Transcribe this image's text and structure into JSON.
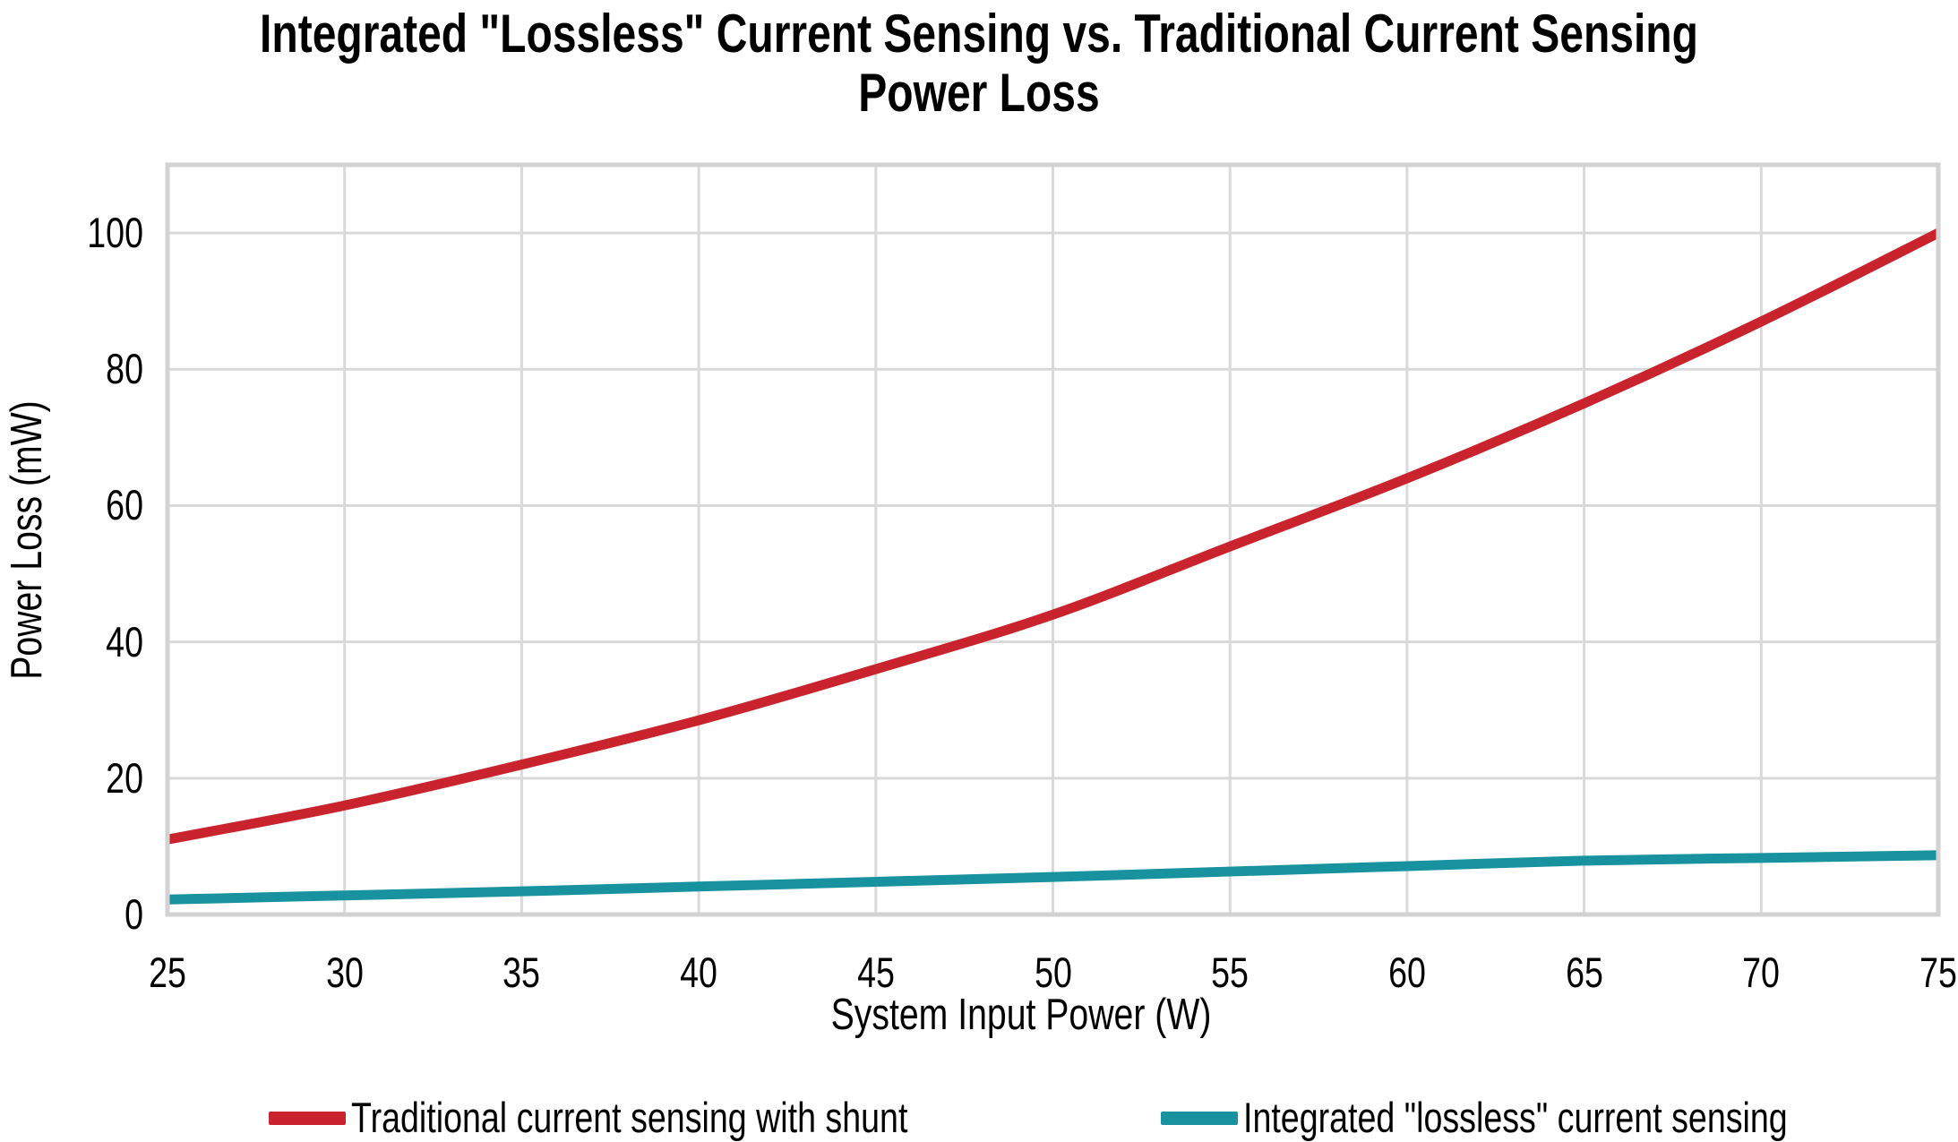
{
  "title": {
    "line1": "Integrated \"Lossless\" Current Sensing vs. Traditional Current Sensing",
    "line2": "Power Loss"
  },
  "axes": {
    "x_label": "System Input Power (W)",
    "y_label": "Power Loss (mW)",
    "x_ticks": [
      "25",
      "30",
      "35",
      "40",
      "45",
      "50",
      "55",
      "60",
      "65",
      "70",
      "75"
    ],
    "y_ticks": [
      "0",
      "20",
      "40",
      "60",
      "80",
      "100"
    ]
  },
  "legend": [
    {
      "label": "Traditional current sensing with shunt",
      "color": "#C9242E"
    },
    {
      "label": "Integrated \"lossless\" current sensing",
      "color": "#17929E"
    }
  ],
  "colors": {
    "grid": "#D9D9D9",
    "frame": "#D2D2D2",
    "background": "#FFFFFF",
    "text": "#000000"
  },
  "chart_data": {
    "type": "line",
    "title": "Integrated \"Lossless\" Current Sensing vs. Traditional Current Sensing Power Loss",
    "xlabel": "System Input Power (W)",
    "ylabel": "Power Loss (mW)",
    "x": [
      25,
      30,
      35,
      40,
      45,
      50,
      55,
      60,
      65,
      70,
      75
    ],
    "series": [
      {
        "name": "Traditional current sensing with shunt",
        "color": "#C9242E",
        "values": [
          11,
          16,
          22,
          28.5,
          36,
          44,
          54,
          64,
          75,
          87,
          100
        ]
      },
      {
        "name": "Integrated \"lossless\" current sensing",
        "color": "#17929E",
        "values": [
          2.2,
          2.8,
          3.4,
          4.1,
          4.8,
          5.5,
          6.3,
          7.1,
          7.9,
          8.3,
          8.7
        ]
      }
    ],
    "xlim": [
      25,
      75
    ],
    "ylim": [
      0,
      110
    ],
    "x_tick_step": 5,
    "y_tick_step": 20,
    "grid": true,
    "legend_position": "bottom"
  }
}
